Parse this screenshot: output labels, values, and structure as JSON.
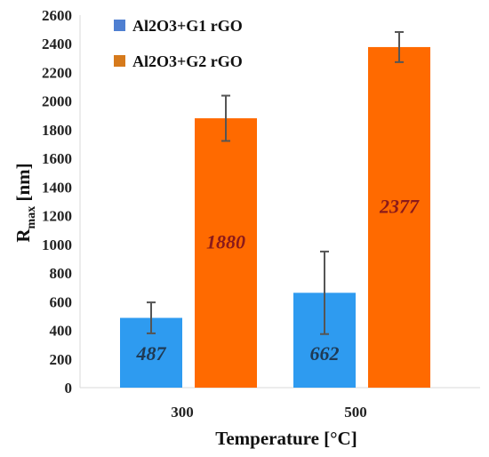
{
  "chart_data": {
    "type": "bar",
    "xlabel": "Temperature [°C]",
    "ylabel": {
      "main": "R",
      "sub": "max",
      "unit": " [nm]"
    },
    "categories": [
      "300",
      "500"
    ],
    "series": [
      {
        "name": "Al2O3+G1 rGO",
        "color": "#2E9BF0",
        "values": [
          487,
          662
        ],
        "error": [
          108,
          288
        ],
        "labels": [
          "487",
          "662"
        ],
        "label_color": "#1F3A54"
      },
      {
        "name": "Al2O3+G2 rGO",
        "color": "#FF6A00",
        "values": [
          1880,
          2377
        ],
        "error": [
          158,
          105
        ],
        "labels": [
          "1880",
          "2377"
        ],
        "label_color": "#8B1A1A"
      }
    ],
    "ylim": [
      0,
      2600
    ],
    "yticks": [
      "0",
      "200",
      "400",
      "600",
      "800",
      "1000",
      "1200",
      "1400",
      "1600",
      "1800",
      "2000",
      "2200",
      "2400",
      "2600"
    ],
    "grid": false,
    "legend": "top-left",
    "error_bars": true
  }
}
